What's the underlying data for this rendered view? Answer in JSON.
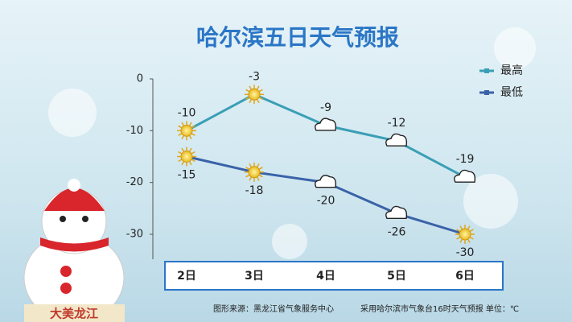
{
  "chart_data": {
    "type": "line",
    "title": "哈尔滨五日天气预报",
    "categories": [
      "2日",
      "3日",
      "4日",
      "5日",
      "6日"
    ],
    "series": [
      {
        "name": "最高",
        "color": "#3a9fb5",
        "values": [
          -10,
          -3,
          -9,
          -12,
          -19
        ]
      },
      {
        "name": "最低",
        "color": "#3a62a8",
        "values": [
          -15,
          -18,
          -20,
          -26,
          -30
        ]
      }
    ],
    "ylim": [
      -30,
      0
    ],
    "yticks": [
      0,
      -10,
      -20,
      -30
    ],
    "grid": false,
    "legend": "top-right",
    "footer_left": "图形来源：黑龙江省气象服务中心",
    "footer_right": "采用哈尔滨市气象台16时天气预报 单位：℃",
    "badge": "大美龙江"
  }
}
